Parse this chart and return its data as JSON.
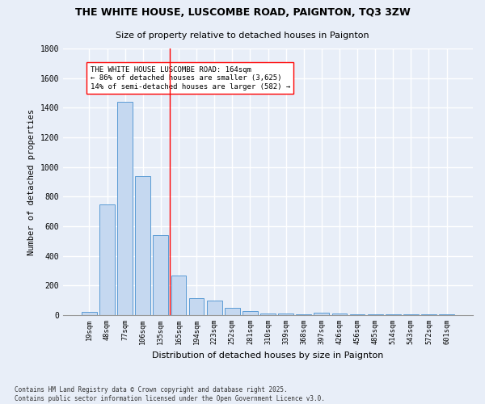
{
  "title_line1": "THE WHITE HOUSE, LUSCOMBE ROAD, PAIGNTON, TQ3 3ZW",
  "title_line2": "Size of property relative to detached houses in Paignton",
  "xlabel": "Distribution of detached houses by size in Paignton",
  "ylabel": "Number of detached properties",
  "categories": [
    "19sqm",
    "48sqm",
    "77sqm",
    "106sqm",
    "135sqm",
    "165sqm",
    "194sqm",
    "223sqm",
    "252sqm",
    "281sqm",
    "310sqm",
    "339sqm",
    "368sqm",
    "397sqm",
    "426sqm",
    "456sqm",
    "485sqm",
    "514sqm",
    "543sqm",
    "572sqm",
    "601sqm"
  ],
  "values": [
    20,
    750,
    1440,
    940,
    540,
    270,
    115,
    100,
    48,
    25,
    10,
    10,
    8,
    18,
    12,
    8,
    5,
    5,
    4,
    4,
    3
  ],
  "bar_color": "#c5d8f0",
  "bar_edge_color": "#5b9bd5",
  "annotation_text": "THE WHITE HOUSE LUSCOMBE ROAD: 164sqm\n← 86% of detached houses are smaller (3,625)\n14% of semi-detached houses are larger (582) →",
  "ylim": [
    0,
    1800
  ],
  "yticks": [
    0,
    200,
    400,
    600,
    800,
    1000,
    1200,
    1400,
    1600,
    1800
  ],
  "footer_text": "Contains HM Land Registry data © Crown copyright and database right 2025.\nContains public sector information licensed under the Open Government Licence v3.0.",
  "background_color": "#e8eef8",
  "grid_color": "#ffffff",
  "bar_width": 0.85
}
